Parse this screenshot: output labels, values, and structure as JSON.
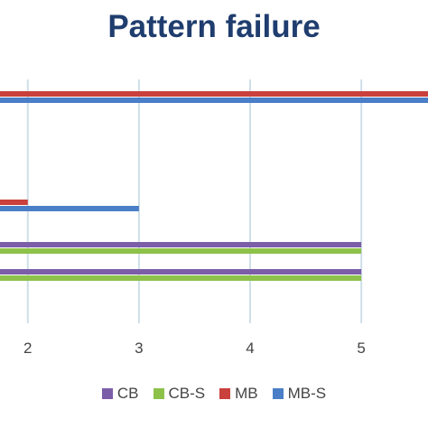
{
  "chart_data": {
    "type": "bar",
    "orientation": "horizontal",
    "title": "Pattern failure",
    "xlabel": "",
    "ylabel": "",
    "x_ticks": [
      2,
      3,
      4,
      5
    ],
    "xlim": [
      1.75,
      5.6
    ],
    "grid": true,
    "legend_position": "bottom",
    "groups": [
      {
        "bars": [
          {
            "series": "MB",
            "value": 6
          },
          {
            "series": "MB-S",
            "value": 6
          }
        ]
      },
      {
        "bars": [
          {
            "series": "MB",
            "value": 2
          },
          {
            "series": "MB-S",
            "value": 3
          }
        ]
      },
      {
        "bars": [
          {
            "series": "CB",
            "value": 5
          },
          {
            "series": "CB-S",
            "value": 5
          }
        ]
      },
      {
        "bars": [
          {
            "series": "CB",
            "value": 5
          },
          {
            "series": "CB-S",
            "value": 5
          }
        ]
      }
    ],
    "series": [
      {
        "name": "CB",
        "color": "#7b5ea7"
      },
      {
        "name": "CB-S",
        "color": "#8dc14a"
      },
      {
        "name": "MB",
        "color": "#c9403c"
      },
      {
        "name": "MB-S",
        "color": "#4a7ec7"
      }
    ]
  }
}
